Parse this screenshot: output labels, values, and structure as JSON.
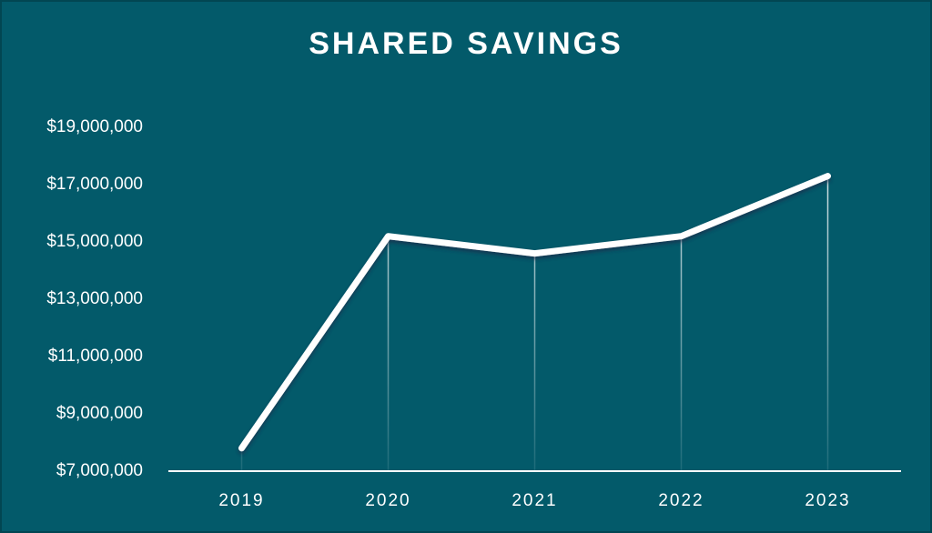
{
  "chart_data": {
    "type": "line",
    "title": "SHARED SAVINGS",
    "categories": [
      "2019",
      "2020",
      "2021",
      "2022",
      "2023"
    ],
    "values": [
      7800000,
      15200000,
      14600000,
      15200000,
      17300000
    ],
    "color": "#ffffff",
    "ylim": [
      7000000,
      19000000
    ],
    "yticks": [
      {
        "value": 7000000,
        "label": "$7,000,000"
      },
      {
        "value": 9000000,
        "label": "$9,000,000"
      },
      {
        "value": 11000000,
        "label": "$11,000,000"
      },
      {
        "value": 13000000,
        "label": "$13,000,000"
      },
      {
        "value": 15000000,
        "label": "$15,000,000"
      },
      {
        "value": 17000000,
        "label": "$17,000,000"
      },
      {
        "value": 19000000,
        "label": "$19,000,000"
      }
    ],
    "grid": false
  }
}
